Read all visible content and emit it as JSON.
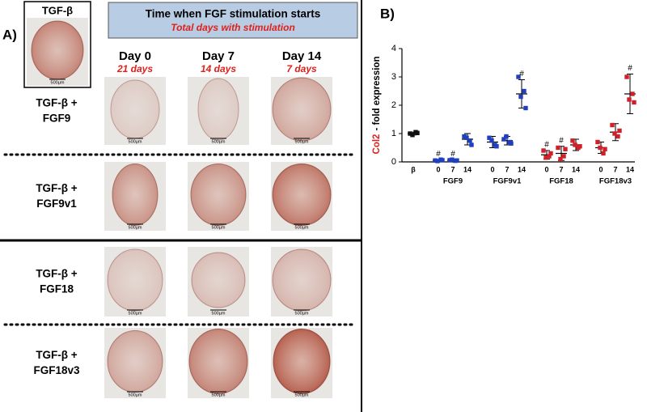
{
  "panel_a": {
    "label": "A)",
    "reference": "TGF-β",
    "header": {
      "title": "Time when FGF stimulation starts",
      "subtitle": "Total days with stimulation"
    },
    "columns": [
      {
        "day": "Day 0",
        "total": "21 days"
      },
      {
        "day": "Day 7",
        "total": "14 days"
      },
      {
        "day": "Day 14",
        "total": "7 days"
      }
    ],
    "rows": [
      [
        "TGF-β +",
        "FGF9"
      ],
      [
        "TGF-β +",
        "FGF9v1"
      ],
      [
        "TGF-β +",
        "FGF18"
      ],
      [
        "TGF-β +",
        "FGF18v3"
      ]
    ],
    "scale_bar": "500µm"
  },
  "chart_data": {
    "type": "dot",
    "label": "B)",
    "ylabel": [
      "Col2",
      "- fold expression"
    ],
    "ylim": [
      0,
      4
    ],
    "yticks": [
      0,
      1,
      2,
      3,
      4
    ],
    "groups": [
      {
        "color": "#111111",
        "conditions": [
          {
            "label": "β",
            "values": [
              1.0,
              1.05,
              0.95,
              1.02
            ],
            "mean": 1.0,
            "sd": 0.05
          }
        ]
      },
      {
        "name": "FGF9",
        "color": "#1f3fbf",
        "conditions": [
          {
            "label": "0",
            "values": [
              0.05,
              0.08,
              0.03,
              0.06
            ],
            "mean": 0.05,
            "sd": 0.03,
            "annotation": "#"
          },
          {
            "label": "7",
            "values": [
              0.06,
              0.04,
              0.08,
              0.05
            ],
            "mean": 0.05,
            "sd": 0.03,
            "annotation": "#"
          },
          {
            "label": "14",
            "values": [
              0.9,
              0.75,
              0.85,
              0.6
            ],
            "mean": 0.8,
            "sd": 0.2
          }
        ]
      },
      {
        "name": "FGF9v1",
        "color": "#1f3fbf",
        "conditions": [
          {
            "label": "0",
            "values": [
              0.85,
              0.6,
              0.75,
              0.55
            ],
            "mean": 0.7,
            "sd": 0.2
          },
          {
            "label": "7",
            "values": [
              0.8,
              0.7,
              0.9,
              0.65
            ],
            "mean": 0.75,
            "sd": 0.15
          },
          {
            "label": "14",
            "values": [
              3.0,
              2.5,
              2.3,
              1.9
            ],
            "mean": 2.4,
            "sd": 0.5,
            "annotation": "#"
          }
        ]
      },
      {
        "name": "FGF18",
        "color": "#d0202a",
        "conditions": [
          {
            "label": "0",
            "values": [
              0.4,
              0.2,
              0.15,
              0.3
            ],
            "mean": 0.25,
            "sd": 0.15,
            "annotation": "#"
          },
          {
            "label": "7",
            "values": [
              0.5,
              0.2,
              0.1,
              0.45
            ],
            "mean": 0.3,
            "sd": 0.25,
            "annotation": "#"
          },
          {
            "label": "14",
            "values": [
              0.75,
              0.5,
              0.6,
              0.55
            ],
            "mean": 0.6,
            "sd": 0.2
          }
        ]
      },
      {
        "name": "FGF18v3",
        "color": "#d0202a",
        "conditions": [
          {
            "label": "0",
            "values": [
              0.7,
              0.3,
              0.5,
              0.45
            ],
            "mean": 0.5,
            "sd": 0.2
          },
          {
            "label": "7",
            "values": [
              1.3,
              0.9,
              1.0,
              1.1
            ],
            "mean": 1.05,
            "sd": 0.3
          },
          {
            "label": "14",
            "values": [
              3.0,
              2.4,
              2.2,
              2.1
            ],
            "mean": 2.4,
            "sd": 0.7,
            "annotation": "#"
          }
        ]
      }
    ]
  }
}
